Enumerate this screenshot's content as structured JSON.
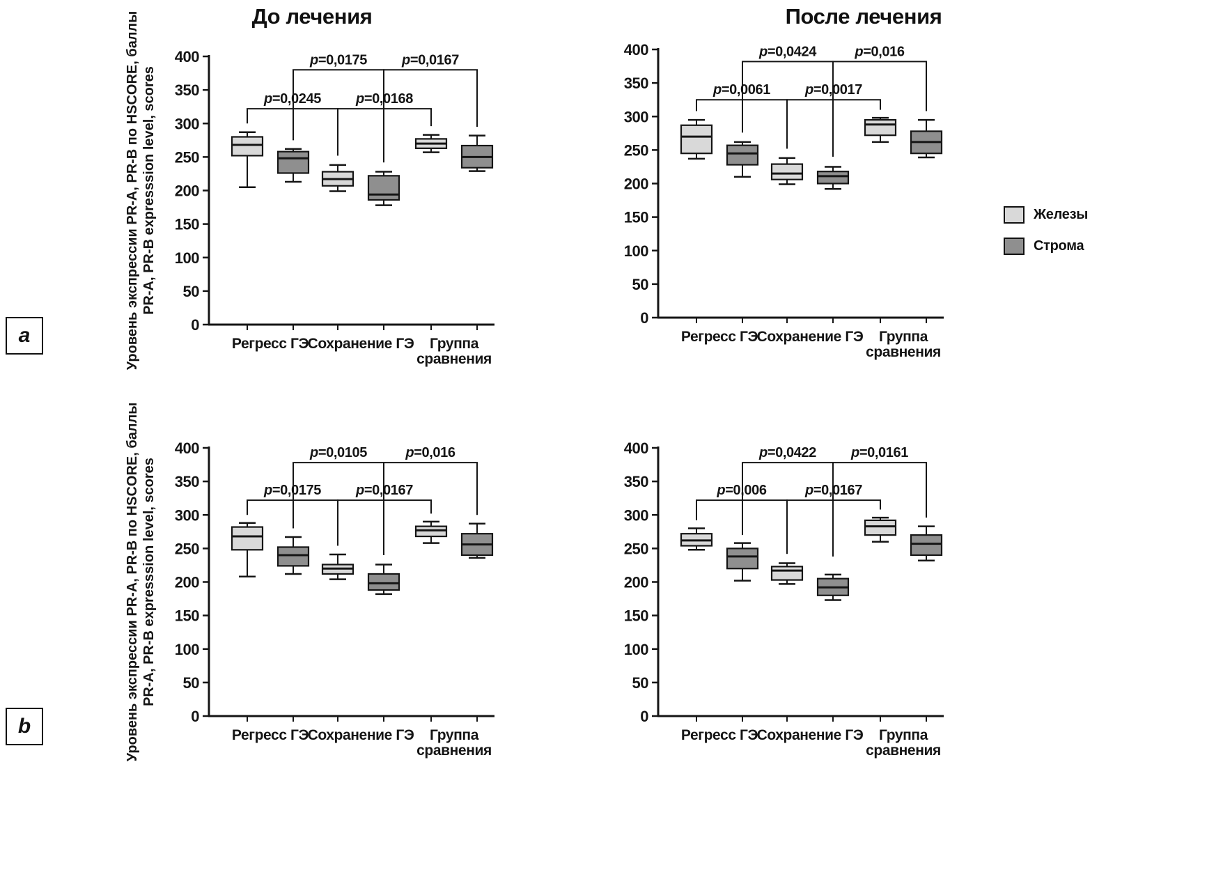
{
  "page": {
    "col_titles": [
      {
        "text": "До лечения"
      },
      {
        "text": "После лечения"
      }
    ],
    "row_labels": [
      {
        "text": "a"
      },
      {
        "text": "b"
      }
    ],
    "legend": {
      "items": [
        {
          "label": "Железы",
          "color": "#d9d9d9"
        },
        {
          "label": "Строма",
          "color": "#8f8f8f"
        }
      ]
    }
  },
  "chart_data": [
    {
      "type": "box",
      "panel": "a",
      "title": "До лечения",
      "ylabel_lines": [
        "Уровень экспрессии PR-A, PR-B по HSCORE, баллы",
        "PR-A, PR-B expresssion level, scores"
      ],
      "ylim": [
        0,
        400
      ],
      "ytick_step": 50,
      "grid": false,
      "categories": [
        "Регресс ГЭ",
        "Сохранение ГЭ",
        "Группа\nсравнения"
      ],
      "series": [
        {
          "name": "Железы",
          "color": "#d9d9d9",
          "boxes": [
            {
              "min": 205,
              "q1": 252,
              "med": 268,
              "q3": 280,
              "max": 287
            },
            {
              "min": 199,
              "q1": 207,
              "med": 217,
              "q3": 228,
              "max": 238
            },
            {
              "min": 257,
              "q1": 263,
              "med": 270,
              "q3": 277,
              "max": 283
            }
          ]
        },
        {
          "name": "Строма",
          "color": "#8f8f8f",
          "boxes": [
            {
              "min": 213,
              "q1": 226,
              "med": 248,
              "q3": 258,
              "max": 262
            },
            {
              "min": 178,
              "q1": 186,
              "med": 194,
              "q3": 222,
              "max": 228
            },
            {
              "min": 229,
              "q1": 234,
              "med": 250,
              "q3": 267,
              "max": 282
            }
          ]
        }
      ],
      "brackets": [
        {
          "label": "p=0,0245",
          "from": 0,
          "to": 2,
          "level": 322,
          "drop_from": 300,
          "drop_to": 252
        },
        {
          "label": "p=0,0175",
          "from": 1,
          "to": 3,
          "level": 380,
          "drop_from": 275,
          "drop_to": 242
        },
        {
          "label": "p=0,0168",
          "from": 2,
          "to": 4,
          "level": 322,
          "drop_from": 252,
          "drop_to": 296
        },
        {
          "label": "p=0,0167",
          "from": 3,
          "to": 5,
          "level": 380,
          "drop_from": 242,
          "drop_to": 295
        }
      ]
    },
    {
      "type": "box",
      "panel": "a",
      "title": "После лечения",
      "ylabel_lines": [],
      "ylim": [
        0,
        400
      ],
      "ytick_step": 50,
      "grid": false,
      "categories": [
        "Регресс ГЭ",
        "Сохранение ГЭ",
        "Группа\nсравнения"
      ],
      "series": [
        {
          "name": "Железы",
          "color": "#d9d9d9",
          "boxes": [
            {
              "min": 237,
              "q1": 245,
              "med": 270,
              "q3": 287,
              "max": 295
            },
            {
              "min": 199,
              "q1": 206,
              "med": 215,
              "q3": 229,
              "max": 238
            },
            {
              "min": 262,
              "q1": 272,
              "med": 288,
              "q3": 295,
              "max": 298
            }
          ]
        },
        {
          "name": "Строма",
          "color": "#8f8f8f",
          "boxes": [
            {
              "min": 210,
              "q1": 228,
              "med": 245,
              "q3": 257,
              "max": 262
            },
            {
              "min": 192,
              "q1": 200,
              "med": 211,
              "q3": 218,
              "max": 225
            },
            {
              "min": 239,
              "q1": 245,
              "med": 262,
              "q3": 278,
              "max": 295
            }
          ]
        }
      ],
      "brackets": [
        {
          "label": "p=0,0061",
          "from": 0,
          "to": 2,
          "level": 325,
          "drop_from": 308,
          "drop_to": 252
        },
        {
          "label": "p=0,0424",
          "from": 1,
          "to": 3,
          "level": 382,
          "drop_from": 276,
          "drop_to": 240
        },
        {
          "label": "p=0,0017",
          "from": 2,
          "to": 4,
          "level": 325,
          "drop_from": 252,
          "drop_to": 310
        },
        {
          "label": "p=0,016",
          "from": 3,
          "to": 5,
          "level": 382,
          "drop_from": 240,
          "drop_to": 308
        }
      ]
    },
    {
      "type": "box",
      "panel": "b",
      "title": "До лечения",
      "ylabel_lines": [
        "Уровень экспрессии PR-A, PR-B по HSCORE, баллы",
        "PR-A, PR-B expresssion level, scores"
      ],
      "ylim": [
        0,
        400
      ],
      "ytick_step": 50,
      "grid": false,
      "categories": [
        "Регресс ГЭ",
        "Сохранение ГЭ",
        "Группа\nсравнения"
      ],
      "series": [
        {
          "name": "Железы",
          "color": "#d9d9d9",
          "boxes": [
            {
              "min": 208,
              "q1": 248,
              "med": 268,
              "q3": 282,
              "max": 288
            },
            {
              "min": 204,
              "q1": 212,
              "med": 220,
              "q3": 226,
              "max": 241
            },
            {
              "min": 258,
              "q1": 268,
              "med": 277,
              "q3": 283,
              "max": 290
            }
          ]
        },
        {
          "name": "Строма",
          "color": "#8f8f8f",
          "boxes": [
            {
              "min": 212,
              "q1": 224,
              "med": 240,
              "q3": 252,
              "max": 267
            },
            {
              "min": 182,
              "q1": 188,
              "med": 198,
              "q3": 212,
              "max": 226
            },
            {
              "min": 236,
              "q1": 240,
              "med": 256,
              "q3": 272,
              "max": 287
            }
          ]
        }
      ],
      "brackets": [
        {
          "label": "p=0,0175",
          "from": 0,
          "to": 2,
          "level": 322,
          "drop_from": 300,
          "drop_to": 254
        },
        {
          "label": "p=0,0105",
          "from": 1,
          "to": 3,
          "level": 378,
          "drop_from": 280,
          "drop_to": 240
        },
        {
          "label": "p=0,0167",
          "from": 2,
          "to": 4,
          "level": 322,
          "drop_from": 254,
          "drop_to": 302
        },
        {
          "label": "p=0,016",
          "from": 3,
          "to": 5,
          "level": 378,
          "drop_from": 240,
          "drop_to": 300
        }
      ]
    },
    {
      "type": "box",
      "panel": "b",
      "title": "После лечения",
      "ylabel_lines": [],
      "ylim": [
        0,
        400
      ],
      "ytick_step": 50,
      "grid": false,
      "categories": [
        "Регресс ГЭ",
        "Сохранение ГЭ",
        "Группа\nсравнения"
      ],
      "series": [
        {
          "name": "Железы",
          "color": "#d9d9d9",
          "boxes": [
            {
              "min": 248,
              "q1": 254,
              "med": 262,
              "q3": 272,
              "max": 280
            },
            {
              "min": 197,
              "q1": 203,
              "med": 217,
              "q3": 223,
              "max": 228
            },
            {
              "min": 260,
              "q1": 270,
              "med": 283,
              "q3": 292,
              "max": 296
            }
          ]
        },
        {
          "name": "Строма",
          "color": "#8f8f8f",
          "boxes": [
            {
              "min": 202,
              "q1": 220,
              "med": 238,
              "q3": 250,
              "max": 258
            },
            {
              "min": 173,
              "q1": 180,
              "med": 192,
              "q3": 205,
              "max": 211
            },
            {
              "min": 232,
              "q1": 240,
              "med": 257,
              "q3": 270,
              "max": 283
            }
          ]
        }
      ],
      "brackets": [
        {
          "label": "p=0,006",
          "from": 0,
          "to": 2,
          "level": 322,
          "drop_from": 292,
          "drop_to": 242
        },
        {
          "label": "p=0,0422",
          "from": 1,
          "to": 3,
          "level": 378,
          "drop_from": 270,
          "drop_to": 238
        },
        {
          "label": "p=0,0167",
          "from": 2,
          "to": 4,
          "level": 322,
          "drop_from": 242,
          "drop_to": 308
        },
        {
          "label": "p=0,0161",
          "from": 3,
          "to": 5,
          "level": 378,
          "drop_from": 238,
          "drop_to": 296
        }
      ]
    }
  ]
}
